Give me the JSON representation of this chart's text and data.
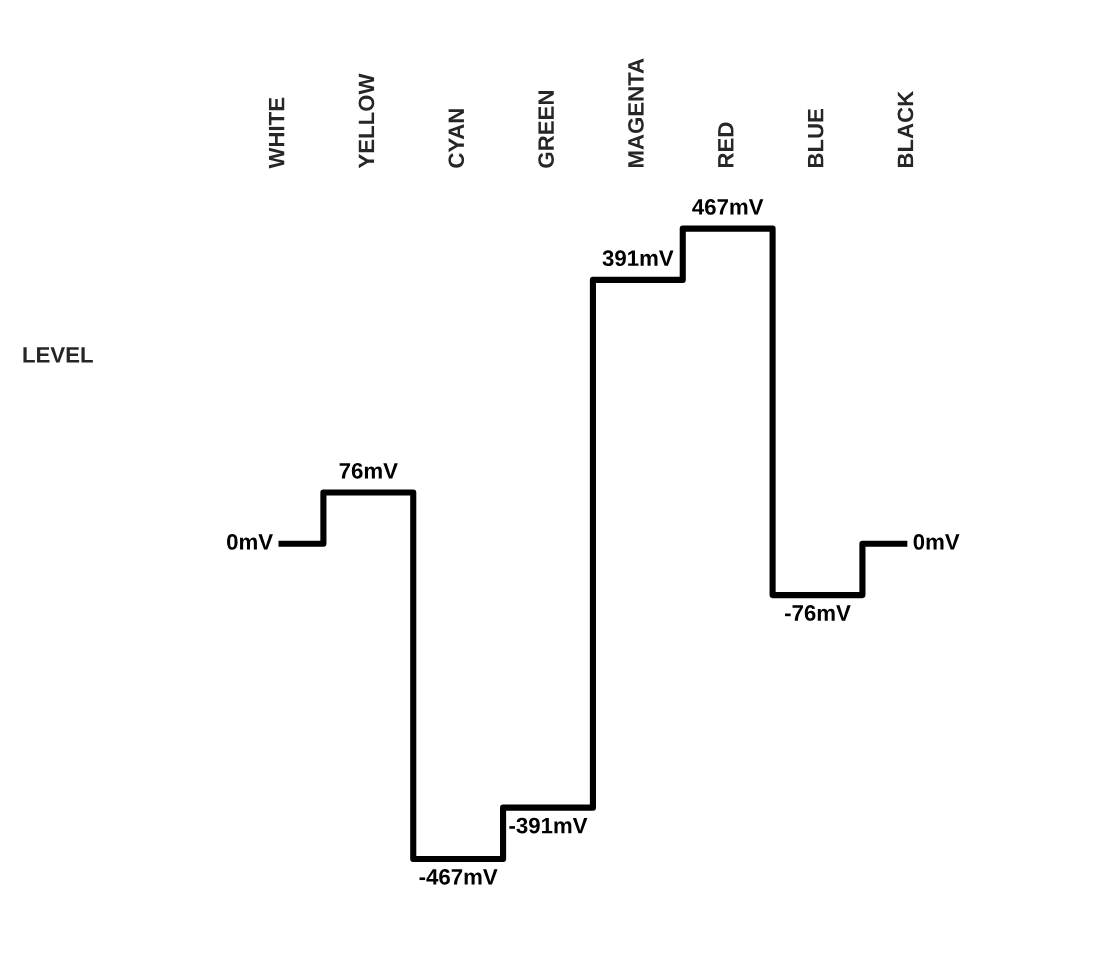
{
  "chart_data": {
    "type": "step",
    "title": "LEVEL",
    "categories": [
      "WHITE",
      "YELLOW",
      "CYAN",
      "GREEN",
      "MAGENTA",
      "RED",
      "BLUE",
      "BLACK"
    ],
    "values": [
      0,
      76,
      -467,
      -391,
      391,
      467,
      -76,
      0
    ],
    "value_labels": [
      "0mV",
      "76mV",
      "-467mV",
      "-391mV",
      "391mV",
      "467mV",
      "-76mV",
      "0mV"
    ],
    "color": "#000000",
    "grid": false,
    "legend": false
  }
}
